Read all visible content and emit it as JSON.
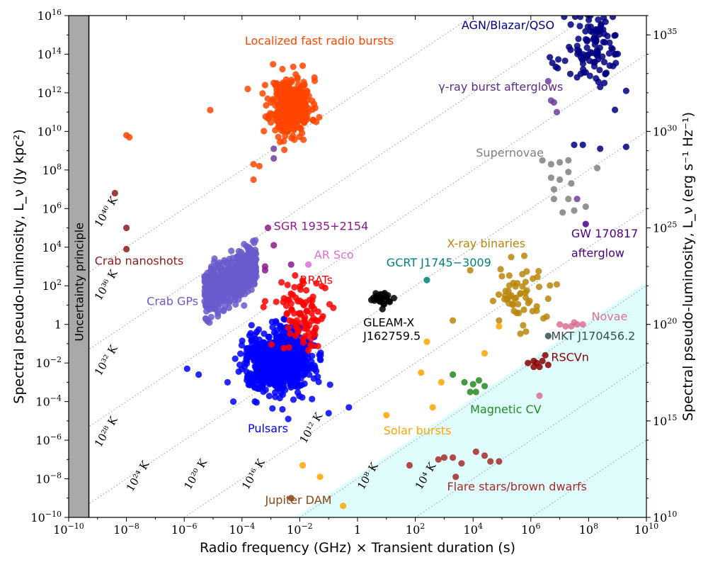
{
  "chart_data": {
    "type": "scatter",
    "xlabel": "Radio frequency (GHz) × Transient duration (s)",
    "ylabel": "Spectral pseudo-luminosity, L_ν (Jy kpc²)",
    "ylabel_right": "Spectral pseudo-luminosity, L_ν (erg s⁻¹ Hz⁻¹)",
    "x_scale": "log",
    "y_scale": "log",
    "xlim_exp": [
      -10,
      10
    ],
    "ylim_exp": [
      -10,
      16
    ],
    "x_ticks": [
      {
        "base": "10",
        "exp": "−10"
      },
      {
        "base": "10",
        "exp": "−8"
      },
      {
        "base": "10",
        "exp": "−6"
      },
      {
        "base": "10",
        "exp": "−4"
      },
      {
        "base": "10",
        "exp": "−2"
      },
      {
        "base": "1",
        "exp": ""
      },
      {
        "base": "10",
        "exp": "2"
      },
      {
        "base": "10",
        "exp": "4"
      },
      {
        "base": "10",
        "exp": "6"
      },
      {
        "base": "10",
        "exp": "8"
      },
      {
        "base": "10",
        "exp": "10"
      }
    ],
    "y_ticks": [
      {
        "base": "10",
        "exp": "−10"
      },
      {
        "base": "10",
        "exp": "−8"
      },
      {
        "base": "10",
        "exp": "−6"
      },
      {
        "base": "10",
        "exp": "−4"
      },
      {
        "base": "10",
        "exp": "−2"
      },
      {
        "base": "1",
        "exp": ""
      },
      {
        "base": "10",
        "exp": "2"
      },
      {
        "base": "10",
        "exp": "4"
      },
      {
        "base": "10",
        "exp": "6"
      },
      {
        "base": "10",
        "exp": "8"
      },
      {
        "base": "10",
        "exp": "10"
      },
      {
        "base": "10",
        "exp": "12"
      },
      {
        "base": "10",
        "exp": "14"
      },
      {
        "base": "10",
        "exp": "16"
      }
    ],
    "y_right_ticks": [
      {
        "text": "10",
        "exp": "10",
        "y_exp": -10
      },
      {
        "text": "10",
        "exp": "15",
        "y_exp": -5
      },
      {
        "text": "10",
        "exp": "20",
        "y_exp": 0
      },
      {
        "text": "10",
        "exp": "25",
        "y_exp": 5
      },
      {
        "text": "10",
        "exp": "30",
        "y_exp": 10
      },
      {
        "text": "10",
        "exp": "35",
        "y_exp": 15
      }
    ],
    "uncertainty_limit_x_exp": -9.3,
    "uncertainty_label": "Uncertainty principle",
    "brightness_temperature_lines": [
      {
        "label": "10⁴⁰ K",
        "x0_exp": -10,
        "y0_exp": 2
      },
      {
        "label": "10³⁶ K",
        "x0_exp": -10,
        "y0_exp": -2
      },
      {
        "label": "10³² K",
        "x0_exp": -10,
        "y0_exp": -6
      },
      {
        "label": "10²⁸ K",
        "x0_exp": -10,
        "y0_exp": -10
      },
      {
        "label": "10²⁴ K",
        "x0_exp": -6,
        "y0_exp": -10
      },
      {
        "label": "10²⁰ K",
        "x0_exp": -2,
        "y0_exp": -10
      },
      {
        "label": "10¹⁶ K",
        "x0_exp": 2,
        "y0_exp": -10
      },
      {
        "label": "10¹² K",
        "x0_exp": 6,
        "y0_exp": -10
      },
      {
        "label": "10⁸ K",
        "x0_exp": 10,
        "y0_exp": -10
      },
      {
        "label": "10⁴ K",
        "x0_exp": 14,
        "y0_exp": -10
      }
    ],
    "temp_label_positions": [
      {
        "x_exp": -8.9,
        "y_exp": 5.0
      },
      {
        "x_exp": -8.9,
        "y_exp": 1.2
      },
      {
        "x_exp": -8.9,
        "y_exp": -2.7
      },
      {
        "x_exp": -8.9,
        "y_exp": -6.4
      },
      {
        "x_exp": -7.8,
        "y_exp": -8.7
      },
      {
        "x_exp": -5.8,
        "y_exp": -8.6
      },
      {
        "x_exp": -3.8,
        "y_exp": -8.6
      },
      {
        "x_exp": -1.8,
        "y_exp": -6.2
      },
      {
        "x_exp": 0.2,
        "y_exp": -8.6
      },
      {
        "x_exp": 2.2,
        "y_exp": -8.6
      }
    ],
    "coherent_region_color": "#dffdfd",
    "coherent_region_line": {
      "x0_exp": -2.2,
      "y0_exp": -10,
      "slope": 1.0
    },
    "annotations": [
      {
        "text": "Localized fast radio bursts",
        "x_exp": -3.9,
        "y_exp": 14.5,
        "color": "#ff4500"
      },
      {
        "text": "AGN/Blazar/QSO",
        "x_exp": 3.6,
        "y_exp": 15.3,
        "color": "#000080"
      },
      {
        "text": "γ-ray burst afterglows",
        "x_exp": 2.8,
        "y_exp": 12.1,
        "color": "#5b2c83"
      },
      {
        "text": "Supernovae",
        "x_exp": 4.1,
        "y_exp": 8.7,
        "color": "#808080"
      },
      {
        "text": "SGR 1935+2154",
        "x_exp": -2.9,
        "y_exp": 4.9,
        "color": "#8b1a8b"
      },
      {
        "text": "Crab nanoshots",
        "x_exp": -9.1,
        "y_exp": 3.1,
        "color": "#8b1a1a"
      },
      {
        "text": "AR Sco",
        "x_exp": -1.5,
        "y_exp": 3.4,
        "color": "#da70d6"
      },
      {
        "text": "GCRT J1745−3009",
        "x_exp": 1.0,
        "y_exp": 3.0,
        "color": "#008080"
      },
      {
        "text": "X-ray binaries",
        "x_exp": 3.1,
        "y_exp": 4.0,
        "color": "#b8860b"
      },
      {
        "text": "GW 170817",
        "x_exp": 7.4,
        "y_exp": 4.5,
        "color": "#4b0082"
      },
      {
        "text": "afterglow",
        "x_exp": 7.4,
        "y_exp": 3.5,
        "color": "#4b0082"
      },
      {
        "text": "RRATs",
        "x_exp": -2.0,
        "y_exp": 2.1,
        "color": "#ff0000"
      },
      {
        "text": "Crab GPs",
        "x_exp": -7.3,
        "y_exp": 1.0,
        "color": "#6a5acd"
      },
      {
        "text": "GLEAM-X",
        "x_exp": 0.2,
        "y_exp": -0.1,
        "color": "#000000"
      },
      {
        "text": "J162759.5",
        "x_exp": 0.2,
        "y_exp": -0.8,
        "color": "#000000"
      },
      {
        "text": "Novae",
        "x_exp": 8.1,
        "y_exp": 0.2,
        "color": "#db7093"
      },
      {
        "text": "MKT J170456.2",
        "x_exp": 6.7,
        "y_exp": -0.8,
        "color": "#2f4f4f"
      },
      {
        "text": "RSCVn",
        "x_exp": 6.7,
        "y_exp": -1.9,
        "color": "#8b0000"
      },
      {
        "text": "Magnetic CV",
        "x_exp": 3.9,
        "y_exp": -4.6,
        "color": "#228b22"
      },
      {
        "text": "Pulsars",
        "x_exp": -3.8,
        "y_exp": -5.6,
        "color": "#0000ff"
      },
      {
        "text": "Solar bursts",
        "x_exp": 0.9,
        "y_exp": -5.7,
        "color": "#ffa500"
      },
      {
        "text": "Flare stars/brown dwarfs",
        "x_exp": 3.1,
        "y_exp": -8.6,
        "color": "#a52a2a"
      },
      {
        "text": "Jupiter DAM",
        "x_exp": -3.2,
        "y_exp": -9.3,
        "color": "#8b4513"
      }
    ],
    "series": [
      {
        "key": "frb",
        "color": "#ff4500",
        "count": 360,
        "cx": -2.3,
        "cy": 11.3,
        "sx": 0.35,
        "sy": 0.75,
        "seed": 11,
        "extra": [
          [
            -8.0,
            9.8
          ],
          [
            -7.9,
            9.7
          ],
          [
            -5.1,
            11.1
          ],
          [
            -3.8,
            12.2
          ],
          [
            -3.6,
            8.3
          ],
          [
            -3.4,
            8.2
          ],
          [
            -3.6,
            7.5
          ],
          [
            -1.9,
            13.4
          ],
          [
            -3.2,
            12.4
          ]
        ]
      },
      {
        "key": "agn",
        "color": "#000080",
        "count": 110,
        "cx": 8.2,
        "cy": 14.2,
        "sx": 0.5,
        "sy": 1.0,
        "seed": 21,
        "extra": [
          [
            7.5,
            9.3
          ],
          [
            7.8,
            9.3
          ],
          [
            8.4,
            9.1
          ],
          [
            9.3,
            9.2
          ],
          [
            8.4,
            12.3
          ],
          [
            9.3,
            12.1
          ],
          [
            7.6,
            12.8
          ]
        ]
      },
      {
        "key": "grb",
        "color": "#6f3d9e",
        "count": 0,
        "seed": 31,
        "extra": [
          [
            6.6,
            12.6
          ],
          [
            6.7,
            11.6
          ],
          [
            6.8,
            11.5
          ],
          [
            6.9,
            11.0
          ],
          [
            -2.9,
            9.1
          ],
          [
            -2.9,
            8.6
          ],
          [
            7.6,
            6.5
          ]
        ]
      },
      {
        "key": "supernovae",
        "color": "#808080",
        "count": 0,
        "seed": 41,
        "extra": [
          [
            6.4,
            8.5
          ],
          [
            6.7,
            8.3
          ],
          [
            7.0,
            8.4
          ],
          [
            7.3,
            8.5
          ],
          [
            6.7,
            7.6
          ],
          [
            7.0,
            7.5
          ],
          [
            6.8,
            7.0
          ],
          [
            7.4,
            7.3
          ],
          [
            6.8,
            6.5
          ],
          [
            7.3,
            6.5
          ],
          [
            7.5,
            5.9
          ],
          [
            7.1,
            5.8
          ],
          [
            7.9,
            6.1
          ],
          [
            8.3,
            8.1
          ],
          [
            7.3,
            7.9
          ]
        ]
      },
      {
        "key": "sgr",
        "color": "#8b1a8b",
        "count": 0,
        "seed": 51,
        "extra": [
          [
            -3.1,
            5.0
          ],
          [
            -2.9,
            4.1
          ],
          [
            -3.2,
            3.0
          ],
          [
            -3.2,
            2.8
          ],
          [
            -2.3,
            3.1
          ]
        ]
      },
      {
        "key": "crab_nano",
        "color": "#8b1a1a",
        "count": 0,
        "seed": 61,
        "extra": [
          [
            -8.4,
            6.8
          ],
          [
            -8.0,
            5.0
          ],
          [
            -8.0,
            3.9
          ]
        ]
      },
      {
        "key": "crab_gp",
        "color": "#6a5acd",
        "count": 700,
        "cx": -4.4,
        "cy": 2.3,
        "sx": 0.45,
        "sy": 0.9,
        "seed": 71,
        "shape": "band"
      },
      {
        "key": "pulsars",
        "color": "#0000ff",
        "count": 900,
        "cx": -2.7,
        "cy": -1.9,
        "sx": 0.55,
        "sy": 0.75,
        "seed": 81,
        "extra": [
          [
            -5.9,
            -2.3
          ],
          [
            -5.5,
            -2.6
          ],
          [
            -4.3,
            -4.0
          ],
          [
            -4.5,
            -3.0
          ],
          [
            -2.4,
            -4.9
          ],
          [
            -1.0,
            -4.6
          ],
          [
            -0.3,
            -4.3
          ],
          [
            -2.6,
            -4.4
          ]
        ]
      },
      {
        "key": "rrats",
        "color": "#ff0000",
        "count": 90,
        "cx": -2.0,
        "cy": 0.4,
        "sx": 0.4,
        "sy": 0.9,
        "seed": 91,
        "extra": [
          [
            -3.2,
            1.2
          ],
          [
            -1.9,
            2.1
          ]
        ]
      },
      {
        "key": "ar_sco",
        "color": "#da70d6",
        "count": 0,
        "seed": 101,
        "extra": [
          [
            -1.7,
            3.1
          ]
        ]
      },
      {
        "key": "gcrt",
        "color": "#008080",
        "count": 0,
        "seed": 111,
        "extra": [
          [
            2.4,
            2.3
          ]
        ]
      },
      {
        "key": "gleam",
        "color": "#000000",
        "count": 30,
        "cx": 0.8,
        "cy": 1.4,
        "sx": 0.14,
        "sy": 0.2,
        "seed": 121
      },
      {
        "key": "xrb",
        "color": "#b8860b",
        "count": 55,
        "cx": 5.6,
        "cy": 1.6,
        "sx": 0.55,
        "sy": 0.8,
        "seed": 131,
        "extra": [
          [
            3.9,
            2.8
          ],
          [
            3.3,
            0.2
          ],
          [
            4.9,
            0.2
          ]
        ]
      },
      {
        "key": "gw",
        "color": "#4b0082",
        "count": 0,
        "seed": 141,
        "extra": [
          [
            7.9,
            5.2
          ]
        ]
      },
      {
        "key": "novae",
        "color": "#db7093",
        "count": 0,
        "seed": 151,
        "extra": [
          [
            7.0,
            0.0
          ],
          [
            7.2,
            -0.1
          ],
          [
            7.5,
            0.1
          ],
          [
            7.4,
            -0.1
          ],
          [
            7.8,
            0.0
          ],
          [
            7.6,
            0.0
          ]
        ]
      },
      {
        "key": "mkt",
        "color": "#2f4f4f",
        "count": 0,
        "seed": 161,
        "extra": [
          [
            6.6,
            -0.6
          ]
        ]
      },
      {
        "key": "rscvn",
        "color": "#8b0000",
        "count": 0,
        "seed": 171,
        "extra": [
          [
            5.9,
            -2.0
          ],
          [
            6.1,
            -1.9
          ],
          [
            6.3,
            -2.2
          ],
          [
            6.5,
            -1.6
          ],
          [
            6.6,
            -2.1
          ],
          [
            6.2,
            -2.0
          ],
          [
            6.4,
            -1.9
          ],
          [
            6.1,
            -2.2
          ]
        ]
      },
      {
        "key": "magnetic_cv",
        "color": "#228b22",
        "count": 0,
        "seed": 181,
        "extra": [
          [
            3.3,
            -2.6
          ],
          [
            3.7,
            -3.0
          ],
          [
            4.0,
            -3.1
          ],
          [
            4.1,
            -3.5
          ],
          [
            4.2,
            -2.9
          ],
          [
            3.9,
            -3.5
          ],
          [
            4.4,
            -3.2
          ]
        ]
      },
      {
        "key": "solar",
        "color": "#ffa500",
        "count": 0,
        "seed": 191,
        "extra": [
          [
            2.4,
            -0.9
          ],
          [
            2.2,
            -2.5
          ],
          [
            1.0,
            -4.7
          ],
          [
            -1.9,
            -7.3
          ],
          [
            -1.3,
            -7.9
          ],
          [
            -0.5,
            -9.4
          ],
          [
            2.9,
            -3.0
          ],
          [
            4.4,
            -1.5
          ],
          [
            4.9,
            -0.1
          ],
          [
            2.6,
            -4.3
          ]
        ]
      },
      {
        "key": "jupiter",
        "color": "#8b4513",
        "count": 0,
        "seed": 201,
        "extra": [
          [
            -2.3,
            -9.0
          ]
        ]
      },
      {
        "key": "flare",
        "color": "#a52a2a",
        "count": 0,
        "seed": 211,
        "extra": [
          [
            1.8,
            -7.3
          ],
          [
            2.8,
            -7.0
          ],
          [
            3.0,
            -6.9
          ],
          [
            3.3,
            -6.9
          ],
          [
            3.6,
            -7.2
          ],
          [
            4.1,
            -6.6
          ],
          [
            4.4,
            -6.8
          ],
          [
            4.6,
            -7.1
          ],
          [
            4.9,
            -7.1
          ],
          [
            3.4,
            -7.9
          ]
        ]
      },
      {
        "key": "mkt_pink",
        "color": "#db7093",
        "count": 0,
        "seed": 221,
        "extra": [
          [
            6.3,
            -3.7
          ]
        ]
      }
    ]
  }
}
